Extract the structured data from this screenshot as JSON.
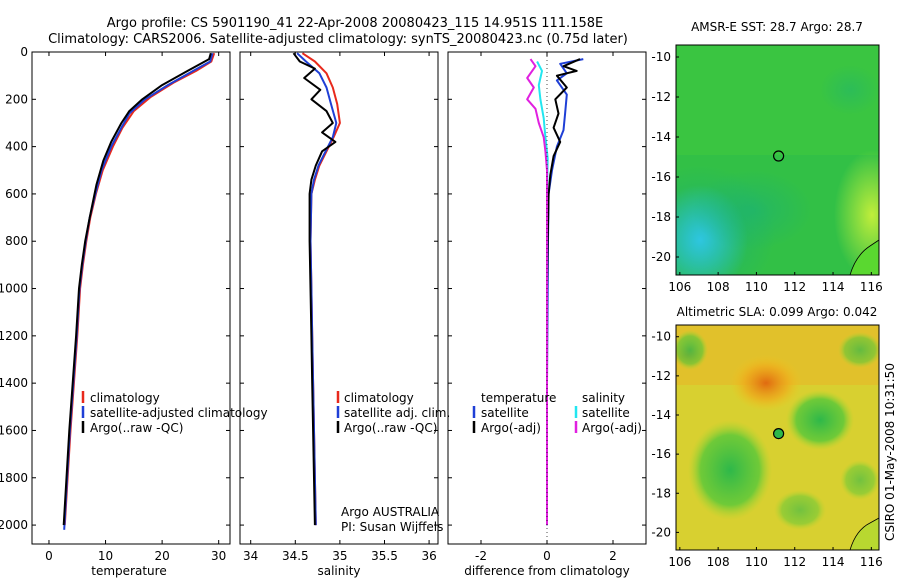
{
  "header": {
    "title_line1": "Argo profile: CS 5901190_41 22-Apr-2008 20080423_115 14.951S 111.158E",
    "title_line2": "Climatology: CARS2006. Satellite-adjusted climatology: synTS_20080423.nc (0.75d later)"
  },
  "side_label": "CSIRO 01-May-2008 10:31:50",
  "colors": {
    "climatology": "#e8291c",
    "satellite": "#1f3fd6",
    "argo": "#000000",
    "cyan": "#22e6f0",
    "magenta": "#e020e0"
  },
  "chart_data": [
    {
      "type": "line",
      "id": "temperature",
      "xlabel": "temperature",
      "ylabel": "",
      "xlim": [
        -3,
        32
      ],
      "ylim": [
        2080,
        0
      ],
      "xticks": [
        0,
        10,
        20,
        30
      ],
      "yticks": [
        0,
        200,
        400,
        600,
        800,
        1000,
        1200,
        1400,
        1600,
        1800,
        2000
      ],
      "legend": [
        "climatology",
        "satellite-adjusted climatology",
        "Argo(..raw -QC)"
      ],
      "series": [
        {
          "name": "climatology",
          "color": "#e8291c",
          "points": [
            [
              29.2,
              5
            ],
            [
              28.7,
              40
            ],
            [
              26,
              80
            ],
            [
              22,
              130
            ],
            [
              18,
              190
            ],
            [
              15,
              250
            ],
            [
              13,
              320
            ],
            [
              11.3,
              400
            ],
            [
              9.5,
              500
            ],
            [
              8.3,
              600
            ],
            [
              7.3,
              700
            ],
            [
              6.6,
              800
            ],
            [
              6,
              900
            ],
            [
              5.5,
              1000
            ],
            [
              5,
              1200
            ],
            [
              4.4,
              1400
            ],
            [
              3.8,
              1600
            ],
            [
              3.3,
              1800
            ],
            [
              2.8,
              2000
            ]
          ]
        },
        {
          "name": "satellite-adjusted climatology",
          "color": "#1f3fd6",
          "points": [
            [
              28.9,
              5
            ],
            [
              28.5,
              40
            ],
            [
              25.5,
              80
            ],
            [
              21,
              140
            ],
            [
              17,
              200
            ],
            [
              14.2,
              260
            ],
            [
              12.8,
              320
            ],
            [
              11,
              400
            ],
            [
              9.3,
              500
            ],
            [
              8.2,
              600
            ],
            [
              7.2,
              700
            ],
            [
              6.5,
              800
            ],
            [
              5.9,
              900
            ],
            [
              5.4,
              1000
            ],
            [
              4.9,
              1200
            ],
            [
              4.3,
              1400
            ],
            [
              3.7,
              1600
            ],
            [
              3.2,
              1800
            ],
            [
              2.7,
              2020
            ]
          ]
        },
        {
          "name": "Argo(..raw -QC)",
          "color": "#000000",
          "points": [
            [
              28.6,
              5
            ],
            [
              28.3,
              30
            ],
            [
              24.5,
              80
            ],
            [
              20,
              140
            ],
            [
              16.5,
              200
            ],
            [
              14.2,
              250
            ],
            [
              12.8,
              300
            ],
            [
              11,
              380
            ],
            [
              9.6,
              460
            ],
            [
              8.4,
              560
            ],
            [
              7.2,
              700
            ],
            [
              6.4,
              800
            ],
            [
              5.8,
              900
            ],
            [
              5.3,
              1000
            ],
            [
              4.8,
              1200
            ],
            [
              4.2,
              1400
            ],
            [
              3.6,
              1600
            ],
            [
              3.1,
              1800
            ],
            [
              2.6,
              2000
            ]
          ]
        }
      ]
    },
    {
      "type": "line",
      "id": "salinity",
      "xlabel": "salinity",
      "xlim": [
        33.88,
        36.1
      ],
      "ylim": [
        2080,
        0
      ],
      "xticks": [
        34,
        34.5,
        35,
        35.5,
        36
      ],
      "legend": [
        "climatology",
        "satellite adj. clim.",
        "Argo(..raw -QC)"
      ],
      "annotation": [
        "Argo AUSTRALIA",
        "PI: Susan Wijffels"
      ],
      "series": [
        {
          "name": "climatology",
          "color": "#e8291c",
          "points": [
            [
              34.58,
              5
            ],
            [
              34.72,
              40
            ],
            [
              34.85,
              90
            ],
            [
              34.92,
              150
            ],
            [
              34.97,
              220
            ],
            [
              35.0,
              300
            ],
            [
              34.93,
              360
            ],
            [
              34.85,
              420
            ],
            [
              34.77,
              480
            ],
            [
              34.72,
              540
            ],
            [
              34.68,
              600
            ],
            [
              34.67,
              800
            ],
            [
              34.68,
              1000
            ],
            [
              34.69,
              1200
            ],
            [
              34.7,
              1400
            ],
            [
              34.71,
              1600
            ],
            [
              34.72,
              1800
            ],
            [
              34.73,
              2000
            ]
          ]
        },
        {
          "name": "satellite adj. clim.",
          "color": "#1f3fd6",
          "points": [
            [
              34.52,
              5
            ],
            [
              34.62,
              40
            ],
            [
              34.77,
              90
            ],
            [
              34.85,
              150
            ],
            [
              34.9,
              220
            ],
            [
              34.96,
              300
            ],
            [
              34.92,
              360
            ],
            [
              34.84,
              420
            ],
            [
              34.76,
              480
            ],
            [
              34.71,
              540
            ],
            [
              34.68,
              600
            ],
            [
              34.67,
              800
            ],
            [
              34.68,
              1000
            ],
            [
              34.69,
              1200
            ],
            [
              34.7,
              1400
            ],
            [
              34.71,
              1600
            ],
            [
              34.72,
              1800
            ],
            [
              34.73,
              2000
            ]
          ]
        },
        {
          "name": "Argo(..raw -QC)",
          "color": "#000000",
          "points": [
            [
              34.48,
              5
            ],
            [
              34.55,
              40
            ],
            [
              34.72,
              70
            ],
            [
              34.6,
              110
            ],
            [
              34.78,
              160
            ],
            [
              34.68,
              200
            ],
            [
              34.85,
              250
            ],
            [
              34.92,
              300
            ],
            [
              34.8,
              340
            ],
            [
              34.95,
              380
            ],
            [
              34.8,
              420
            ],
            [
              34.73,
              480
            ],
            [
              34.68,
              540
            ],
            [
              34.66,
              600
            ],
            [
              34.66,
              800
            ],
            [
              34.67,
              1000
            ],
            [
              34.68,
              1200
            ],
            [
              34.69,
              1400
            ],
            [
              34.7,
              1600
            ],
            [
              34.71,
              1800
            ],
            [
              34.72,
              2000
            ]
          ]
        }
      ]
    },
    {
      "type": "line",
      "id": "difference",
      "xlabel": "difference from climatology",
      "xlim": [
        -3,
        3
      ],
      "ylim": [
        2080,
        0
      ],
      "xticks": [
        -2,
        0,
        2
      ],
      "legend_temperature": [
        "temperature",
        "satellite",
        "Argo(-adj)"
      ],
      "legend_salinity": [
        "salinity",
        "satellite",
        "Argo(-adj)"
      ],
      "series": [
        {
          "name": "temperature satellite",
          "color": "#1f3fd6",
          "points": [
            [
              1.1,
              30
            ],
            [
              0.4,
              50
            ],
            [
              0.6,
              90
            ],
            [
              0.3,
              120
            ],
            [
              0.6,
              180
            ],
            [
              0.55,
              260
            ],
            [
              0.5,
              330
            ],
            [
              0.3,
              400
            ],
            [
              0.15,
              500
            ],
            [
              0.05,
              600
            ],
            [
              0.03,
              800
            ],
            [
              0.02,
              1000
            ],
            [
              0.0,
              1400
            ],
            [
              0.0,
              2000
            ]
          ]
        },
        {
          "name": "temperature Argo(-adj)",
          "color": "#000000",
          "points": [
            [
              1.0,
              30
            ],
            [
              0.5,
              60
            ],
            [
              0.9,
              80
            ],
            [
              0.3,
              100
            ],
            [
              0.6,
              150
            ],
            [
              0.25,
              200
            ],
            [
              0.35,
              260
            ],
            [
              0.2,
              320
            ],
            [
              0.4,
              380
            ],
            [
              0.2,
              440
            ],
            [
              0.1,
              520
            ],
            [
              0.05,
              600
            ],
            [
              0.02,
              800
            ],
            [
              0.0,
              1000
            ],
            [
              0.0,
              2000
            ]
          ]
        },
        {
          "name": "salinity satellite",
          "color": "#22e6f0",
          "points": [
            [
              -0.3,
              40
            ],
            [
              -0.15,
              80
            ],
            [
              -0.25,
              140
            ],
            [
              -0.2,
              200
            ],
            [
              -0.1,
              280
            ],
            [
              -0.05,
              360
            ],
            [
              0.02,
              450
            ],
            [
              0.0,
              600
            ],
            [
              0.0,
              1000
            ],
            [
              0.0,
              2000
            ]
          ]
        },
        {
          "name": "salinity Argo(-adj)",
          "color": "#e020e0",
          "points": [
            [
              -0.5,
              30
            ],
            [
              -0.35,
              60
            ],
            [
              -0.6,
              110
            ],
            [
              -0.4,
              150
            ],
            [
              -0.6,
              200
            ],
            [
              -0.35,
              240
            ],
            [
              -0.25,
              300
            ],
            [
              -0.1,
              360
            ],
            [
              -0.05,
              420
            ],
            [
              0.0,
              500
            ],
            [
              0.0,
              2000
            ]
          ]
        }
      ]
    },
    {
      "type": "heatmap",
      "id": "sst",
      "title": "AMSR-E SST: 28.7 Argo: 28.7",
      "xlim": [
        105.8,
        116.4
      ],
      "ylim": [
        -20.9,
        -9.4
      ],
      "xticks": [
        106,
        108,
        110,
        112,
        114,
        116
      ],
      "yticks": [
        -10,
        -12,
        -14,
        -16,
        -18,
        -20
      ],
      "marker": [
        111.158,
        -14.951
      ]
    },
    {
      "type": "heatmap",
      "id": "sla",
      "title": "Altimetric SLA: 0.099 Argo: 0.042",
      "xlim": [
        105.8,
        116.4
      ],
      "ylim": [
        -20.9,
        -9.4
      ],
      "xticks": [
        106,
        108,
        110,
        112,
        114,
        116
      ],
      "yticks": [
        -10,
        -12,
        -14,
        -16,
        -18,
        -20
      ],
      "marker": [
        111.158,
        -14.951
      ]
    }
  ]
}
